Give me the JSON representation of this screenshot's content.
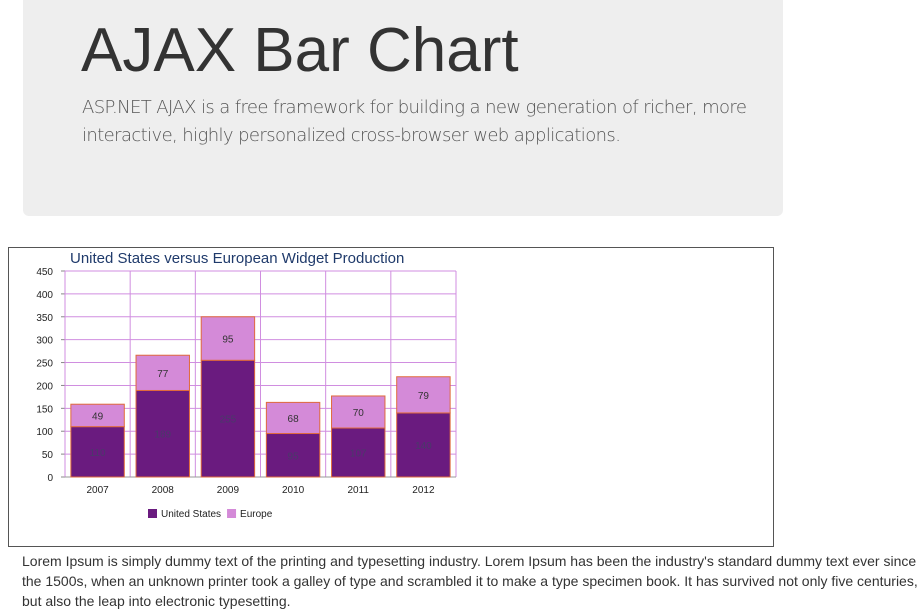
{
  "header": {
    "title": "AJAX Bar Chart",
    "description": "ASP.NET AJAX is a free framework for building a new generation of richer, more interactive, highly personalized cross-browser web applications."
  },
  "chart_data": {
    "type": "bar",
    "stacked": true,
    "title": "United States versus European Widget Production",
    "categories": [
      "2007",
      "2008",
      "2009",
      "2010",
      "2011",
      "2012"
    ],
    "series": [
      {
        "name": "United States",
        "values": [
          110,
          189,
          255,
          95,
          107,
          140
        ],
        "color": "#6a1b7f"
      },
      {
        "name": "Europe",
        "values": [
          49,
          77,
          95,
          68,
          70,
          79
        ],
        "color": "#d48ad8"
      }
    ],
    "yticks": [
      0,
      50,
      100,
      150,
      200,
      250,
      300,
      350,
      400,
      450
    ],
    "ylim": [
      0,
      450
    ],
    "grid": true,
    "grid_color": "#d08ee0",
    "bar_border_color": "#e06a3c",
    "legend": "bottom-center"
  },
  "body_text": {
    "lorem": "Lorem Ipsum is simply dummy text of the printing and typesetting industry. Lorem Ipsum has been the industry's standard dummy text ever since the 1500s, when an unknown printer took a galley of type and scrambled it to make a type specimen book. It has survived not only five centuries, but also the leap into electronic typesetting."
  }
}
